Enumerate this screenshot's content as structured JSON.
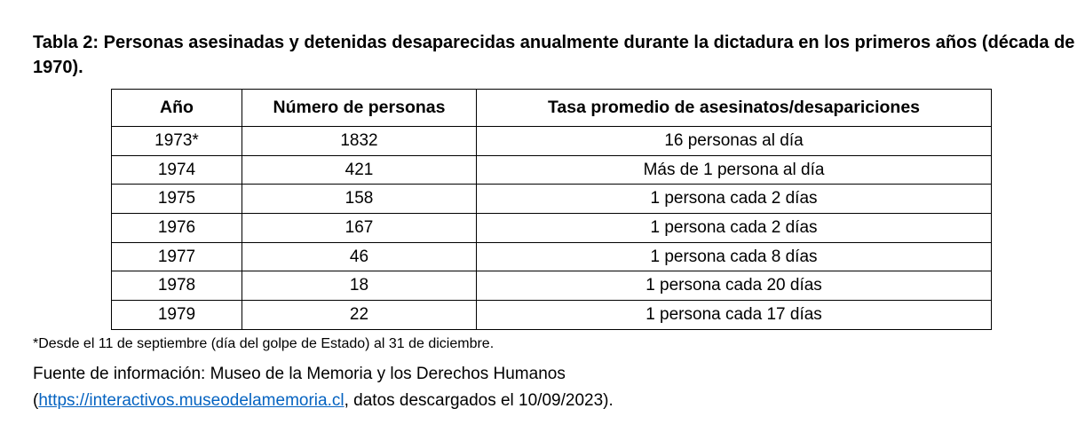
{
  "title": "Tabla 2: Personas asesinadas y detenidas desaparecidas anualmente durante la dictadura en los primeros años (década de 1970).",
  "table": {
    "headers": [
      "Año",
      "Número de personas",
      "Tasa promedio de asesinatos/desapariciones"
    ],
    "rows": [
      [
        "1973*",
        "1832",
        "16 personas al día"
      ],
      [
        "1974",
        "421",
        "Más de 1 persona al día"
      ],
      [
        "1975",
        "158",
        "1 persona cada 2 días"
      ],
      [
        "1976",
        "167",
        "1 persona cada 2 días"
      ],
      [
        "1977",
        "46",
        "1 persona cada 8 días"
      ],
      [
        "1978",
        "18",
        "1 persona cada 20 días"
      ],
      [
        "1979",
        "22",
        "1 persona cada 17 días"
      ]
    ]
  },
  "footnote": "*Desde el 11 de septiembre (día del golpe de Estado) al 31 de diciembre.",
  "source": {
    "line1": "Fuente de información: Museo de la Memoria y los Derechos Humanos",
    "open_paren": "(",
    "link_text": "https://interactivos.museodelamemoria.cl",
    "suffix": ", datos descargados el 10/09/2023)."
  },
  "colors": {
    "link": "#0563c1",
    "text": "#000000",
    "border": "#000000"
  }
}
